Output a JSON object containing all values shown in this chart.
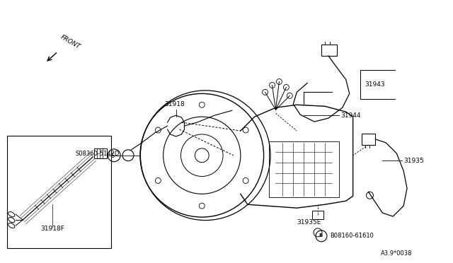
{
  "background_color": "#ffffff",
  "line_color": "#000000",
  "fig_width": 6.4,
  "fig_height": 3.72,
  "dpi": 100,
  "labels": {
    "front_text": "FRONT",
    "label_31918": "31918",
    "label_31943": "31943",
    "label_31944": "31944",
    "label_31935": "31935",
    "label_31935E": "31935E",
    "label_08160": "B08160-61610",
    "label_08360": "S08360-5142D",
    "label_31918F": "31918F",
    "label_diagram": "A3.9*0038"
  }
}
